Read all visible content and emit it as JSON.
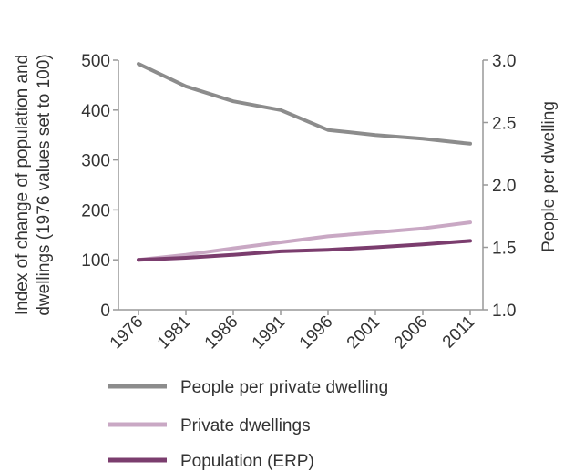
{
  "chart_data": {
    "type": "line",
    "x": [
      "1976",
      "1981",
      "1986",
      "1991",
      "1996",
      "2001",
      "2006",
      "2011"
    ],
    "left_axis": {
      "label_line1": "Index of change of population and",
      "label_line2": "dwellings (1976 values set to 100)",
      "ylim": [
        0,
        500
      ],
      "ticks": [
        "0",
        "100",
        "200",
        "300",
        "400",
        "500"
      ],
      "tick_values": [
        0,
        100,
        200,
        300,
        400,
        500
      ]
    },
    "right_axis": {
      "label": "People per dwelling",
      "ylim": [
        1.0,
        3.0
      ],
      "ticks": [
        "1.0",
        "1.5",
        "2.0",
        "2.5",
        "3.0"
      ],
      "tick_values": [
        1.0,
        1.5,
        2.0,
        2.5,
        3.0
      ]
    },
    "series": [
      {
        "name": "People per private dwelling",
        "axis": "right",
        "color": "#8c8c8c",
        "values": [
          2.97,
          2.79,
          2.67,
          2.6,
          2.44,
          2.4,
          2.37,
          2.33
        ]
      },
      {
        "name": "Private dwellings",
        "axis": "left",
        "color": "#c9a8c4",
        "values": [
          100,
          110,
          123,
          135,
          147,
          155,
          163,
          175
        ]
      },
      {
        "name": "Population (ERP)",
        "axis": "left",
        "color": "#7b3d6e",
        "values": [
          100,
          104,
          110,
          117,
          120,
          125,
          131,
          138
        ]
      }
    ],
    "legend_position": "bottom",
    "grid": false
  }
}
